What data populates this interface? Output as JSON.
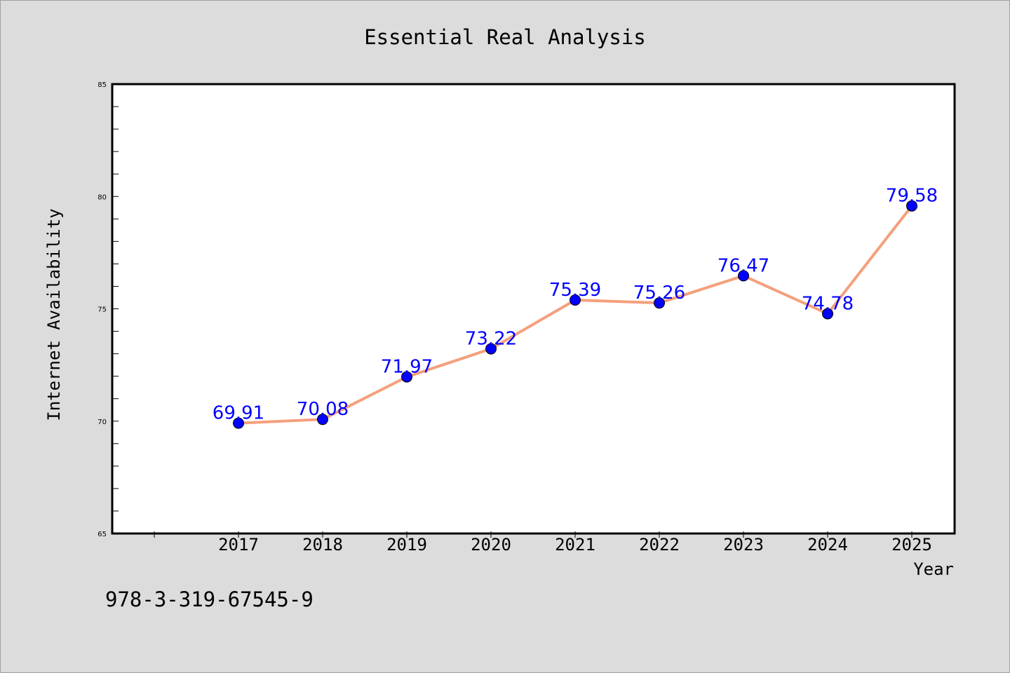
{
  "chart_data": {
    "type": "line",
    "title": "Essential Real Analysis",
    "xlabel": "Year",
    "ylabel": "Internet Availability",
    "x": [
      "2017",
      "2018",
      "2019",
      "2020",
      "2021",
      "2022",
      "2023",
      "2024",
      "2025"
    ],
    "series": [
      {
        "values": [
          69.91,
          70.08,
          71.97,
          73.22,
          75.39,
          75.26,
          76.47,
          74.78,
          79.58
        ]
      }
    ],
    "data_labels": [
      "69.91",
      "70.08",
      "71.97",
      "73.22",
      "75.39",
      "75.26",
      "76.47",
      "74.78",
      "79.58"
    ],
    "ylim": [
      65,
      85
    ],
    "y_ticks": [
      "65",
      "70",
      "75",
      "80",
      "85"
    ],
    "grid": false,
    "legend": "none",
    "colors": {
      "line": "#f4a07c",
      "marker": "#0000ff",
      "label": "#0000ff",
      "plot_bg": "#ffffff",
      "figure_bg": "#dcdcdc"
    }
  },
  "footer_text": "978-3-319-67545-9"
}
